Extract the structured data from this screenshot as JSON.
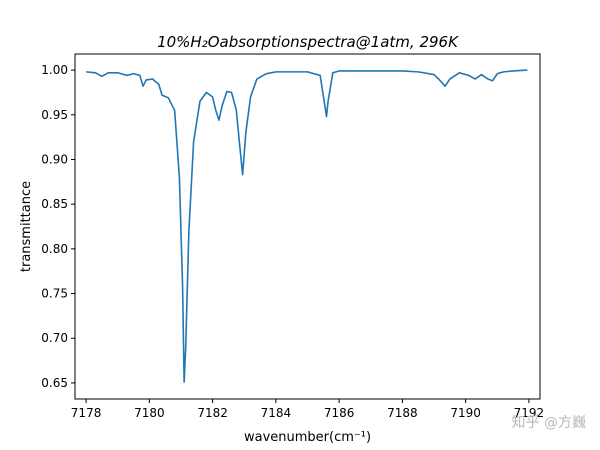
{
  "chart_data": {
    "type": "line",
    "title": "10%H₂Oabsorptionspectra@1atm, 296K",
    "xlabel": "wavenumber(cm⁻¹)",
    "ylabel": "transmittance",
    "xlim": [
      7177.65,
      7192.35
    ],
    "ylim": [
      0.632,
      1.018
    ],
    "xticks": [
      7178,
      7180,
      7182,
      7184,
      7186,
      7188,
      7190,
      7192
    ],
    "yticks": [
      0.65,
      0.7,
      0.75,
      0.8,
      0.85,
      0.9,
      0.95,
      1.0
    ],
    "ytick_labels": [
      "0.65",
      "0.70",
      "0.75",
      "0.80",
      "0.85",
      "0.90",
      "0.95",
      "1.00"
    ],
    "line_color": "#1f77b4",
    "grid": false,
    "series": [
      {
        "x": [
          7178.0,
          7178.3,
          7178.5,
          7178.7,
          7179.0,
          7179.3,
          7179.5,
          7179.7,
          7179.8,
          7179.9,
          7180.1,
          7180.3,
          7180.4,
          7180.6,
          7180.8,
          7180.95,
          7181.05,
          7181.1,
          7181.15,
          7181.25,
          7181.4,
          7181.6,
          7181.8,
          7182.0,
          7182.1,
          7182.2,
          7182.3,
          7182.45,
          7182.6,
          7182.75,
          7182.85,
          7182.95,
          7183.05,
          7183.2,
          7183.4,
          7183.7,
          7184.0,
          7184.5,
          7185.0,
          7185.4,
          7185.55,
          7185.6,
          7185.65,
          7185.8,
          7186.0,
          7187.0,
          7188.0,
          7188.5,
          7189.0,
          7189.2,
          7189.35,
          7189.5,
          7189.8,
          7190.1,
          7190.3,
          7190.5,
          7190.7,
          7190.85,
          7191.0,
          7191.2,
          7191.5,
          7191.95
        ],
        "y": [
          0.998,
          0.997,
          0.993,
          0.997,
          0.997,
          0.994,
          0.996,
          0.994,
          0.982,
          0.989,
          0.99,
          0.984,
          0.972,
          0.969,
          0.955,
          0.88,
          0.76,
          0.651,
          0.69,
          0.82,
          0.92,
          0.965,
          0.975,
          0.97,
          0.955,
          0.944,
          0.96,
          0.976,
          0.975,
          0.955,
          0.918,
          0.883,
          0.93,
          0.97,
          0.99,
          0.996,
          0.998,
          0.998,
          0.998,
          0.994,
          0.96,
          0.948,
          0.965,
          0.997,
          0.999,
          0.999,
          0.999,
          0.998,
          0.995,
          0.988,
          0.982,
          0.99,
          0.997,
          0.994,
          0.99,
          0.995,
          0.99,
          0.988,
          0.996,
          0.998,
          0.999,
          1.0
        ]
      }
    ]
  },
  "watermark": "知乎 @方巍"
}
